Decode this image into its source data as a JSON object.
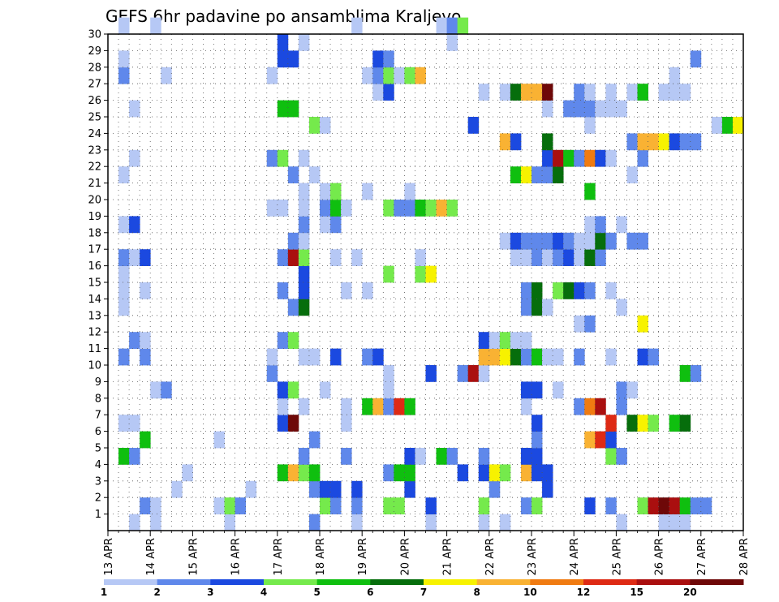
{
  "chart_data": {
    "type": "heatmap",
    "title": "GEFS 6hr padavine po ansamblima Kraljevo",
    "xlabel": "",
    "ylabel": "",
    "x_ticks": [
      "13 APR",
      "14 APR",
      "15 APR",
      "16 APR",
      "17 APR",
      "18 APR",
      "19 APR",
      "20 APR",
      "21 APR",
      "22 APR",
      "23 APR",
      "24 APR",
      "25 APR",
      "26 APR",
      "27 APR",
      "28 APR"
    ],
    "y_ticks": [
      "1",
      "2",
      "3",
      "4",
      "5",
      "6",
      "7",
      "8",
      "9",
      "10",
      "11",
      "12",
      "13",
      "14",
      "15",
      "16",
      "17",
      "18",
      "19",
      "20",
      "21",
      "22",
      "23",
      "24",
      "25",
      "26",
      "27",
      "28",
      "29",
      "30"
    ],
    "xlim": [
      0,
      60
    ],
    "ylim": [
      0,
      30
    ],
    "grid": true,
    "legend": {
      "position": "bottom",
      "colors": [
        "#b6c8f5",
        "#5f88eb",
        "#1b49e0",
        "#75ea4c",
        "#0fbf0f",
        "#066e0c",
        "#f7f200",
        "#f9b233",
        "#f07b11",
        "#de2a14",
        "#aa0f0f",
        "#6e0808"
      ],
      "labels": [
        "1",
        "2",
        "3",
        "4",
        "5",
        "6",
        "7",
        "8",
        "10",
        "12",
        "15",
        "20"
      ]
    },
    "cells": [
      [
        2,
        0,
        1
      ],
      [
        4,
        0,
        1
      ],
      [
        11,
        0,
        1
      ],
      [
        19,
        0,
        2
      ],
      [
        23,
        0,
        1
      ],
      [
        30,
        0,
        1
      ],
      [
        35,
        0,
        1
      ],
      [
        37,
        0,
        1
      ],
      [
        48,
        0,
        1
      ],
      [
        52,
        0,
        1
      ],
      [
        53,
        0,
        1
      ],
      [
        54,
        0,
        1
      ],
      [
        3,
        1,
        2
      ],
      [
        4,
        1,
        1
      ],
      [
        10,
        1,
        1
      ],
      [
        11,
        1,
        4
      ],
      [
        12,
        1,
        2
      ],
      [
        20,
        1,
        4
      ],
      [
        21,
        1,
        2
      ],
      [
        23,
        1,
        2
      ],
      [
        26,
        1,
        4
      ],
      [
        27,
        1,
        4
      ],
      [
        30,
        1,
        3
      ],
      [
        35,
        1,
        4
      ],
      [
        39,
        1,
        2
      ],
      [
        40,
        1,
        4
      ],
      [
        45,
        1,
        3
      ],
      [
        47,
        1,
        2
      ],
      [
        50,
        1,
        4
      ],
      [
        51,
        1,
        11
      ],
      [
        52,
        1,
        12
      ],
      [
        53,
        1,
        11
      ],
      [
        54,
        1,
        5
      ],
      [
        55,
        1,
        2
      ],
      [
        56,
        1,
        2
      ],
      [
        6,
        2,
        1
      ],
      [
        13,
        2,
        1
      ],
      [
        19,
        2,
        2
      ],
      [
        20,
        2,
        3
      ],
      [
        21,
        2,
        3
      ],
      [
        23,
        2,
        3
      ],
      [
        28,
        2,
        3
      ],
      [
        36,
        2,
        2
      ],
      [
        41,
        2,
        3
      ],
      [
        7,
        3,
        1
      ],
      [
        16,
        3,
        5
      ],
      [
        17,
        3,
        8
      ],
      [
        18,
        3,
        4
      ],
      [
        19,
        3,
        5
      ],
      [
        26,
        3,
        2
      ],
      [
        27,
        3,
        5
      ],
      [
        28,
        3,
        5
      ],
      [
        33,
        3,
        3
      ],
      [
        35,
        3,
        3
      ],
      [
        36,
        3,
        7
      ],
      [
        37,
        3,
        4
      ],
      [
        39,
        3,
        8
      ],
      [
        40,
        3,
        3
      ],
      [
        41,
        3,
        3
      ],
      [
        1,
        4,
        5
      ],
      [
        2,
        4,
        2
      ],
      [
        18,
        4,
        2
      ],
      [
        22,
        4,
        2
      ],
      [
        28,
        4,
        3
      ],
      [
        29,
        4,
        1
      ],
      [
        31,
        4,
        5
      ],
      [
        32,
        4,
        2
      ],
      [
        35,
        4,
        2
      ],
      [
        39,
        4,
        3
      ],
      [
        40,
        4,
        3
      ],
      [
        47,
        4,
        4
      ],
      [
        48,
        4,
        2
      ],
      [
        3,
        5,
        5
      ],
      [
        10,
        5,
        1
      ],
      [
        19,
        5,
        2
      ],
      [
        40,
        5,
        2
      ],
      [
        45,
        5,
        8
      ],
      [
        46,
        5,
        10
      ],
      [
        47,
        5,
        3
      ],
      [
        1,
        6,
        1
      ],
      [
        2,
        6,
        1
      ],
      [
        16,
        6,
        3
      ],
      [
        17,
        6,
        12
      ],
      [
        22,
        6,
        1
      ],
      [
        40,
        6,
        3
      ],
      [
        47,
        6,
        10
      ],
      [
        49,
        6,
        6
      ],
      [
        50,
        6,
        7
      ],
      [
        51,
        6,
        4
      ],
      [
        53,
        6,
        5
      ],
      [
        54,
        6,
        6
      ],
      [
        16,
        7,
        1
      ],
      [
        18,
        7,
        1
      ],
      [
        22,
        7,
        1
      ],
      [
        24,
        7,
        5
      ],
      [
        25,
        7,
        8
      ],
      [
        26,
        7,
        2
      ],
      [
        27,
        7,
        10
      ],
      [
        28,
        7,
        5
      ],
      [
        39,
        7,
        1
      ],
      [
        44,
        7,
        2
      ],
      [
        45,
        7,
        9
      ],
      [
        46,
        7,
        11
      ],
      [
        48,
        7,
        2
      ],
      [
        4,
        8,
        1
      ],
      [
        5,
        8,
        2
      ],
      [
        16,
        8,
        3
      ],
      [
        17,
        8,
        4
      ],
      [
        20,
        8,
        1
      ],
      [
        26,
        8,
        1
      ],
      [
        39,
        8,
        3
      ],
      [
        40,
        8,
        3
      ],
      [
        42,
        8,
        1
      ],
      [
        48,
        8,
        2
      ],
      [
        49,
        8,
        1
      ],
      [
        15,
        9,
        2
      ],
      [
        26,
        9,
        1
      ],
      [
        30,
        9,
        3
      ],
      [
        33,
        9,
        2
      ],
      [
        34,
        9,
        11
      ],
      [
        35,
        9,
        1
      ],
      [
        54,
        9,
        5
      ],
      [
        55,
        9,
        2
      ],
      [
        1,
        10,
        2
      ],
      [
        3,
        10,
        2
      ],
      [
        15,
        10,
        1
      ],
      [
        18,
        10,
        1
      ],
      [
        19,
        10,
        1
      ],
      [
        21,
        10,
        3
      ],
      [
        24,
        10,
        2
      ],
      [
        25,
        10,
        3
      ],
      [
        35,
        10,
        8
      ],
      [
        36,
        10,
        8
      ],
      [
        37,
        10,
        7
      ],
      [
        38,
        10,
        6
      ],
      [
        39,
        10,
        2
      ],
      [
        40,
        10,
        5
      ],
      [
        41,
        10,
        1
      ],
      [
        42,
        10,
        1
      ],
      [
        44,
        10,
        2
      ],
      [
        47,
        10,
        1
      ],
      [
        50,
        10,
        3
      ],
      [
        51,
        10,
        2
      ],
      [
        2,
        11,
        2
      ],
      [
        3,
        11,
        1
      ],
      [
        16,
        11,
        2
      ],
      [
        17,
        11,
        4
      ],
      [
        35,
        11,
        3
      ],
      [
        36,
        11,
        1
      ],
      [
        37,
        11,
        4
      ],
      [
        38,
        11,
        1
      ],
      [
        39,
        11,
        1
      ],
      [
        44,
        12,
        1
      ],
      [
        45,
        12,
        2
      ],
      [
        50,
        12,
        7
      ],
      [
        1,
        13,
        1
      ],
      [
        17,
        13,
        2
      ],
      [
        18,
        13,
        6
      ],
      [
        39,
        13,
        2
      ],
      [
        40,
        13,
        6
      ],
      [
        41,
        13,
        1
      ],
      [
        48,
        13,
        1
      ],
      [
        1,
        14,
        1
      ],
      [
        3,
        14,
        1
      ],
      [
        16,
        14,
        2
      ],
      [
        18,
        14,
        3
      ],
      [
        22,
        14,
        1
      ],
      [
        24,
        14,
        1
      ],
      [
        39,
        14,
        2
      ],
      [
        40,
        14,
        6
      ],
      [
        42,
        14,
        4
      ],
      [
        43,
        14,
        6
      ],
      [
        44,
        14,
        3
      ],
      [
        45,
        14,
        2
      ],
      [
        47,
        14,
        1
      ],
      [
        1,
        15,
        1
      ],
      [
        18,
        15,
        3
      ],
      [
        26,
        15,
        4
      ],
      [
        29,
        15,
        4
      ],
      [
        30,
        15,
        7
      ],
      [
        1,
        16,
        2
      ],
      [
        2,
        16,
        1
      ],
      [
        3,
        16,
        3
      ],
      [
        16,
        16,
        2
      ],
      [
        17,
        16,
        11
      ],
      [
        18,
        16,
        4
      ],
      [
        21,
        16,
        1
      ],
      [
        23,
        16,
        1
      ],
      [
        29,
        16,
        1
      ],
      [
        38,
        16,
        1
      ],
      [
        39,
        16,
        1
      ],
      [
        40,
        16,
        2
      ],
      [
        41,
        16,
        1
      ],
      [
        42,
        16,
        2
      ],
      [
        43,
        16,
        3
      ],
      [
        44,
        16,
        1
      ],
      [
        45,
        16,
        6
      ],
      [
        46,
        16,
        2
      ],
      [
        17,
        17,
        2
      ],
      [
        18,
        17,
        1
      ],
      [
        37,
        17,
        1
      ],
      [
        38,
        17,
        3
      ],
      [
        39,
        17,
        2
      ],
      [
        40,
        17,
        2
      ],
      [
        41,
        17,
        2
      ],
      [
        42,
        17,
        3
      ],
      [
        43,
        17,
        2
      ],
      [
        44,
        17,
        1
      ],
      [
        45,
        17,
        1
      ],
      [
        46,
        17,
        6
      ],
      [
        47,
        17,
        2
      ],
      [
        49,
        17,
        2
      ],
      [
        50,
        17,
        2
      ],
      [
        1,
        18,
        1
      ],
      [
        2,
        18,
        3
      ],
      [
        18,
        18,
        2
      ],
      [
        20,
        18,
        1
      ],
      [
        21,
        18,
        2
      ],
      [
        45,
        18,
        1
      ],
      [
        46,
        18,
        2
      ],
      [
        48,
        18,
        1
      ],
      [
        15,
        19,
        1
      ],
      [
        16,
        19,
        1
      ],
      [
        18,
        19,
        1
      ],
      [
        20,
        19,
        2
      ],
      [
        21,
        19,
        5
      ],
      [
        22,
        19,
        1
      ],
      [
        26,
        19,
        4
      ],
      [
        27,
        19,
        2
      ],
      [
        28,
        19,
        2
      ],
      [
        29,
        19,
        5
      ],
      [
        30,
        19,
        4
      ],
      [
        31,
        19,
        8
      ],
      [
        32,
        19,
        4
      ],
      [
        18,
        20,
        1
      ],
      [
        20,
        20,
        1
      ],
      [
        21,
        20,
        4
      ],
      [
        24,
        20,
        1
      ],
      [
        28,
        20,
        1
      ],
      [
        45,
        20,
        5
      ],
      [
        1,
        21,
        1
      ],
      [
        17,
        21,
        2
      ],
      [
        19,
        21,
        1
      ],
      [
        38,
        21,
        5
      ],
      [
        39,
        21,
        7
      ],
      [
        40,
        21,
        2
      ],
      [
        41,
        21,
        2
      ],
      [
        42,
        21,
        6
      ],
      [
        49,
        21,
        1
      ],
      [
        2,
        22,
        1
      ],
      [
        15,
        22,
        2
      ],
      [
        16,
        22,
        4
      ],
      [
        18,
        22,
        1
      ],
      [
        41,
        22,
        3
      ],
      [
        42,
        22,
        11
      ],
      [
        43,
        22,
        5
      ],
      [
        44,
        22,
        2
      ],
      [
        45,
        22,
        9
      ],
      [
        46,
        22,
        3
      ],
      [
        47,
        22,
        1
      ],
      [
        50,
        22,
        2
      ],
      [
        37,
        23,
        8
      ],
      [
        38,
        23,
        3
      ],
      [
        41,
        23,
        6
      ],
      [
        49,
        23,
        2
      ],
      [
        50,
        23,
        8
      ],
      [
        51,
        23,
        8
      ],
      [
        52,
        23,
        7
      ],
      [
        53,
        23,
        3
      ],
      [
        54,
        23,
        2
      ],
      [
        55,
        23,
        2
      ],
      [
        19,
        24,
        4
      ],
      [
        20,
        24,
        1
      ],
      [
        34,
        24,
        3
      ],
      [
        45,
        24,
        1
      ],
      [
        57,
        24,
        1
      ],
      [
        58,
        24,
        5
      ],
      [
        59,
        24,
        7
      ],
      [
        2,
        25,
        1
      ],
      [
        16,
        25,
        5
      ],
      [
        17,
        25,
        5
      ],
      [
        41,
        25,
        1
      ],
      [
        43,
        25,
        2
      ],
      [
        44,
        25,
        2
      ],
      [
        45,
        25,
        2
      ],
      [
        46,
        25,
        1
      ],
      [
        47,
        25,
        1
      ],
      [
        48,
        25,
        1
      ],
      [
        25,
        26,
        1
      ],
      [
        26,
        26,
        3
      ],
      [
        35,
        26,
        1
      ],
      [
        37,
        26,
        1
      ],
      [
        38,
        26,
        6
      ],
      [
        39,
        26,
        8
      ],
      [
        40,
        26,
        8
      ],
      [
        41,
        26,
        12
      ],
      [
        44,
        26,
        2
      ],
      [
        45,
        26,
        1
      ],
      [
        47,
        26,
        1
      ],
      [
        49,
        26,
        1
      ],
      [
        50,
        26,
        5
      ],
      [
        52,
        26,
        1
      ],
      [
        53,
        26,
        1
      ],
      [
        54,
        26,
        1
      ],
      [
        1,
        27,
        2
      ],
      [
        5,
        27,
        1
      ],
      [
        15,
        27,
        1
      ],
      [
        24,
        27,
        1
      ],
      [
        25,
        27,
        2
      ],
      [
        26,
        27,
        4
      ],
      [
        27,
        27,
        1
      ],
      [
        28,
        27,
        4
      ],
      [
        29,
        27,
        8
      ],
      [
        53,
        27,
        1
      ],
      [
        1,
        28,
        1
      ],
      [
        16,
        28,
        3
      ],
      [
        17,
        28,
        3
      ],
      [
        25,
        28,
        3
      ],
      [
        26,
        28,
        2
      ],
      [
        55,
        28,
        2
      ],
      [
        16,
        29,
        3
      ],
      [
        18,
        29,
        1
      ],
      [
        32,
        29,
        1
      ],
      [
        1,
        30,
        1
      ],
      [
        4,
        30,
        1
      ],
      [
        23,
        30,
        1
      ],
      [
        31,
        30,
        1
      ],
      [
        32,
        30,
        2
      ],
      [
        33,
        30,
        4
      ]
    ]
  }
}
